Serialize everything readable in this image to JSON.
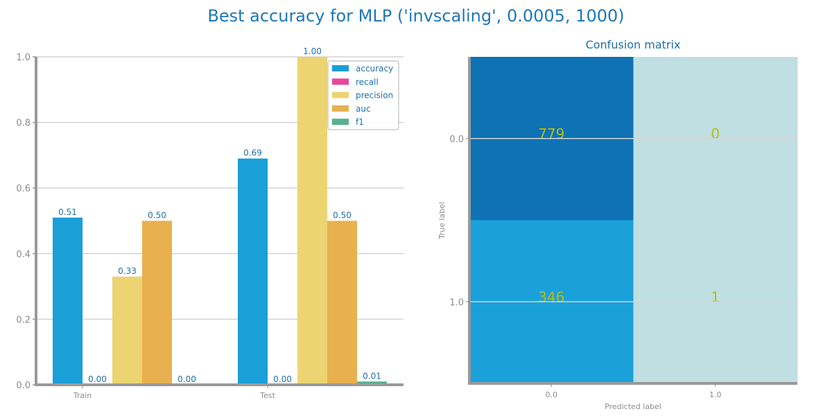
{
  "title": "Best accuracy for MLP ('invscaling', 0.0005, 1000)",
  "chart_data": [
    {
      "type": "bar",
      "categories": [
        "Train",
        "Test"
      ],
      "series": [
        {
          "name": "accuracy",
          "values": [
            0.51,
            0.69
          ],
          "labels": [
            "0.51",
            "0.69"
          ],
          "color": "#1a9fd8"
        },
        {
          "name": "recall",
          "values": [
            0.0,
            0.0
          ],
          "labels": [
            "0.00",
            "0.00"
          ],
          "color": "#e8479a"
        },
        {
          "name": "precision",
          "values": [
            0.33,
            1.0
          ],
          "labels": [
            "0.33",
            "1.00"
          ],
          "color": "#ecd473"
        },
        {
          "name": "auc",
          "values": [
            0.5,
            0.5
          ],
          "labels": [
            "0.50",
            "0.50"
          ],
          "color": "#e8b04f"
        },
        {
          "name": "f1",
          "values": [
            0.0,
            0.01
          ],
          "labels": [
            "0.00",
            "0.01"
          ],
          "color": "#5aaf8e"
        }
      ],
      "ylim": [
        0,
        1.0
      ],
      "yticks": [
        "0.0",
        "0.2",
        "0.4",
        "0.6",
        "0.8",
        "1.0"
      ],
      "grid": true,
      "legend": "top-right"
    },
    {
      "type": "heatmap",
      "title": "Confusion matrix",
      "xlabel": "Predicted label",
      "ylabel": "True label",
      "x_ticks": [
        "0.0",
        "1.0"
      ],
      "y_ticks": [
        "0.0",
        "1.0"
      ],
      "matrix": [
        [
          779,
          0
        ],
        [
          346,
          1
        ]
      ],
      "cell_labels": [
        [
          "779",
          "0"
        ],
        [
          "346",
          "1"
        ]
      ],
      "cell_colors": [
        [
          "#0e72b5",
          "#c0dfe2"
        ],
        [
          "#1aa1da",
          "#c0dfe2"
        ]
      ]
    }
  ]
}
